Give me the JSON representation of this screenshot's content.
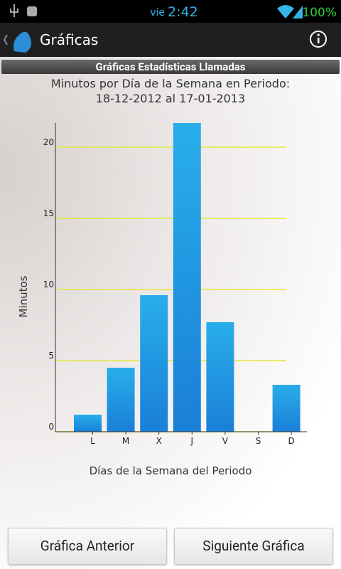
{
  "status_bar": {
    "day": "vie",
    "time": "2:42",
    "battery": "100%"
  },
  "app_bar": {
    "title": "Gráficas"
  },
  "section_title": "Gráficas Estadísticas Llamadas",
  "chart_data": {
    "type": "bar",
    "title": "Minutos por Día de la Semana en Periodo:",
    "subtitle": "18-12-2012 al 17-01-2013",
    "x_label": "Días de la Semana del Periodo",
    "y_label": "Minutos",
    "categories": [
      "L",
      "M",
      "X",
      "J",
      "V",
      "S",
      "D"
    ],
    "values": [
      1.2,
      4.5,
      9.6,
      21.7,
      7.7,
      0,
      3.3
    ],
    "color": "#1a7fd8",
    "grid_color": "#e6e63c",
    "ylim": [
      0,
      21.7
    ],
    "yticks": [
      0,
      5,
      10,
      15,
      20
    ],
    "grid": true
  },
  "buttons": {
    "previous": "Gráfica Anterior",
    "next": "Siguiente Gráfica"
  }
}
